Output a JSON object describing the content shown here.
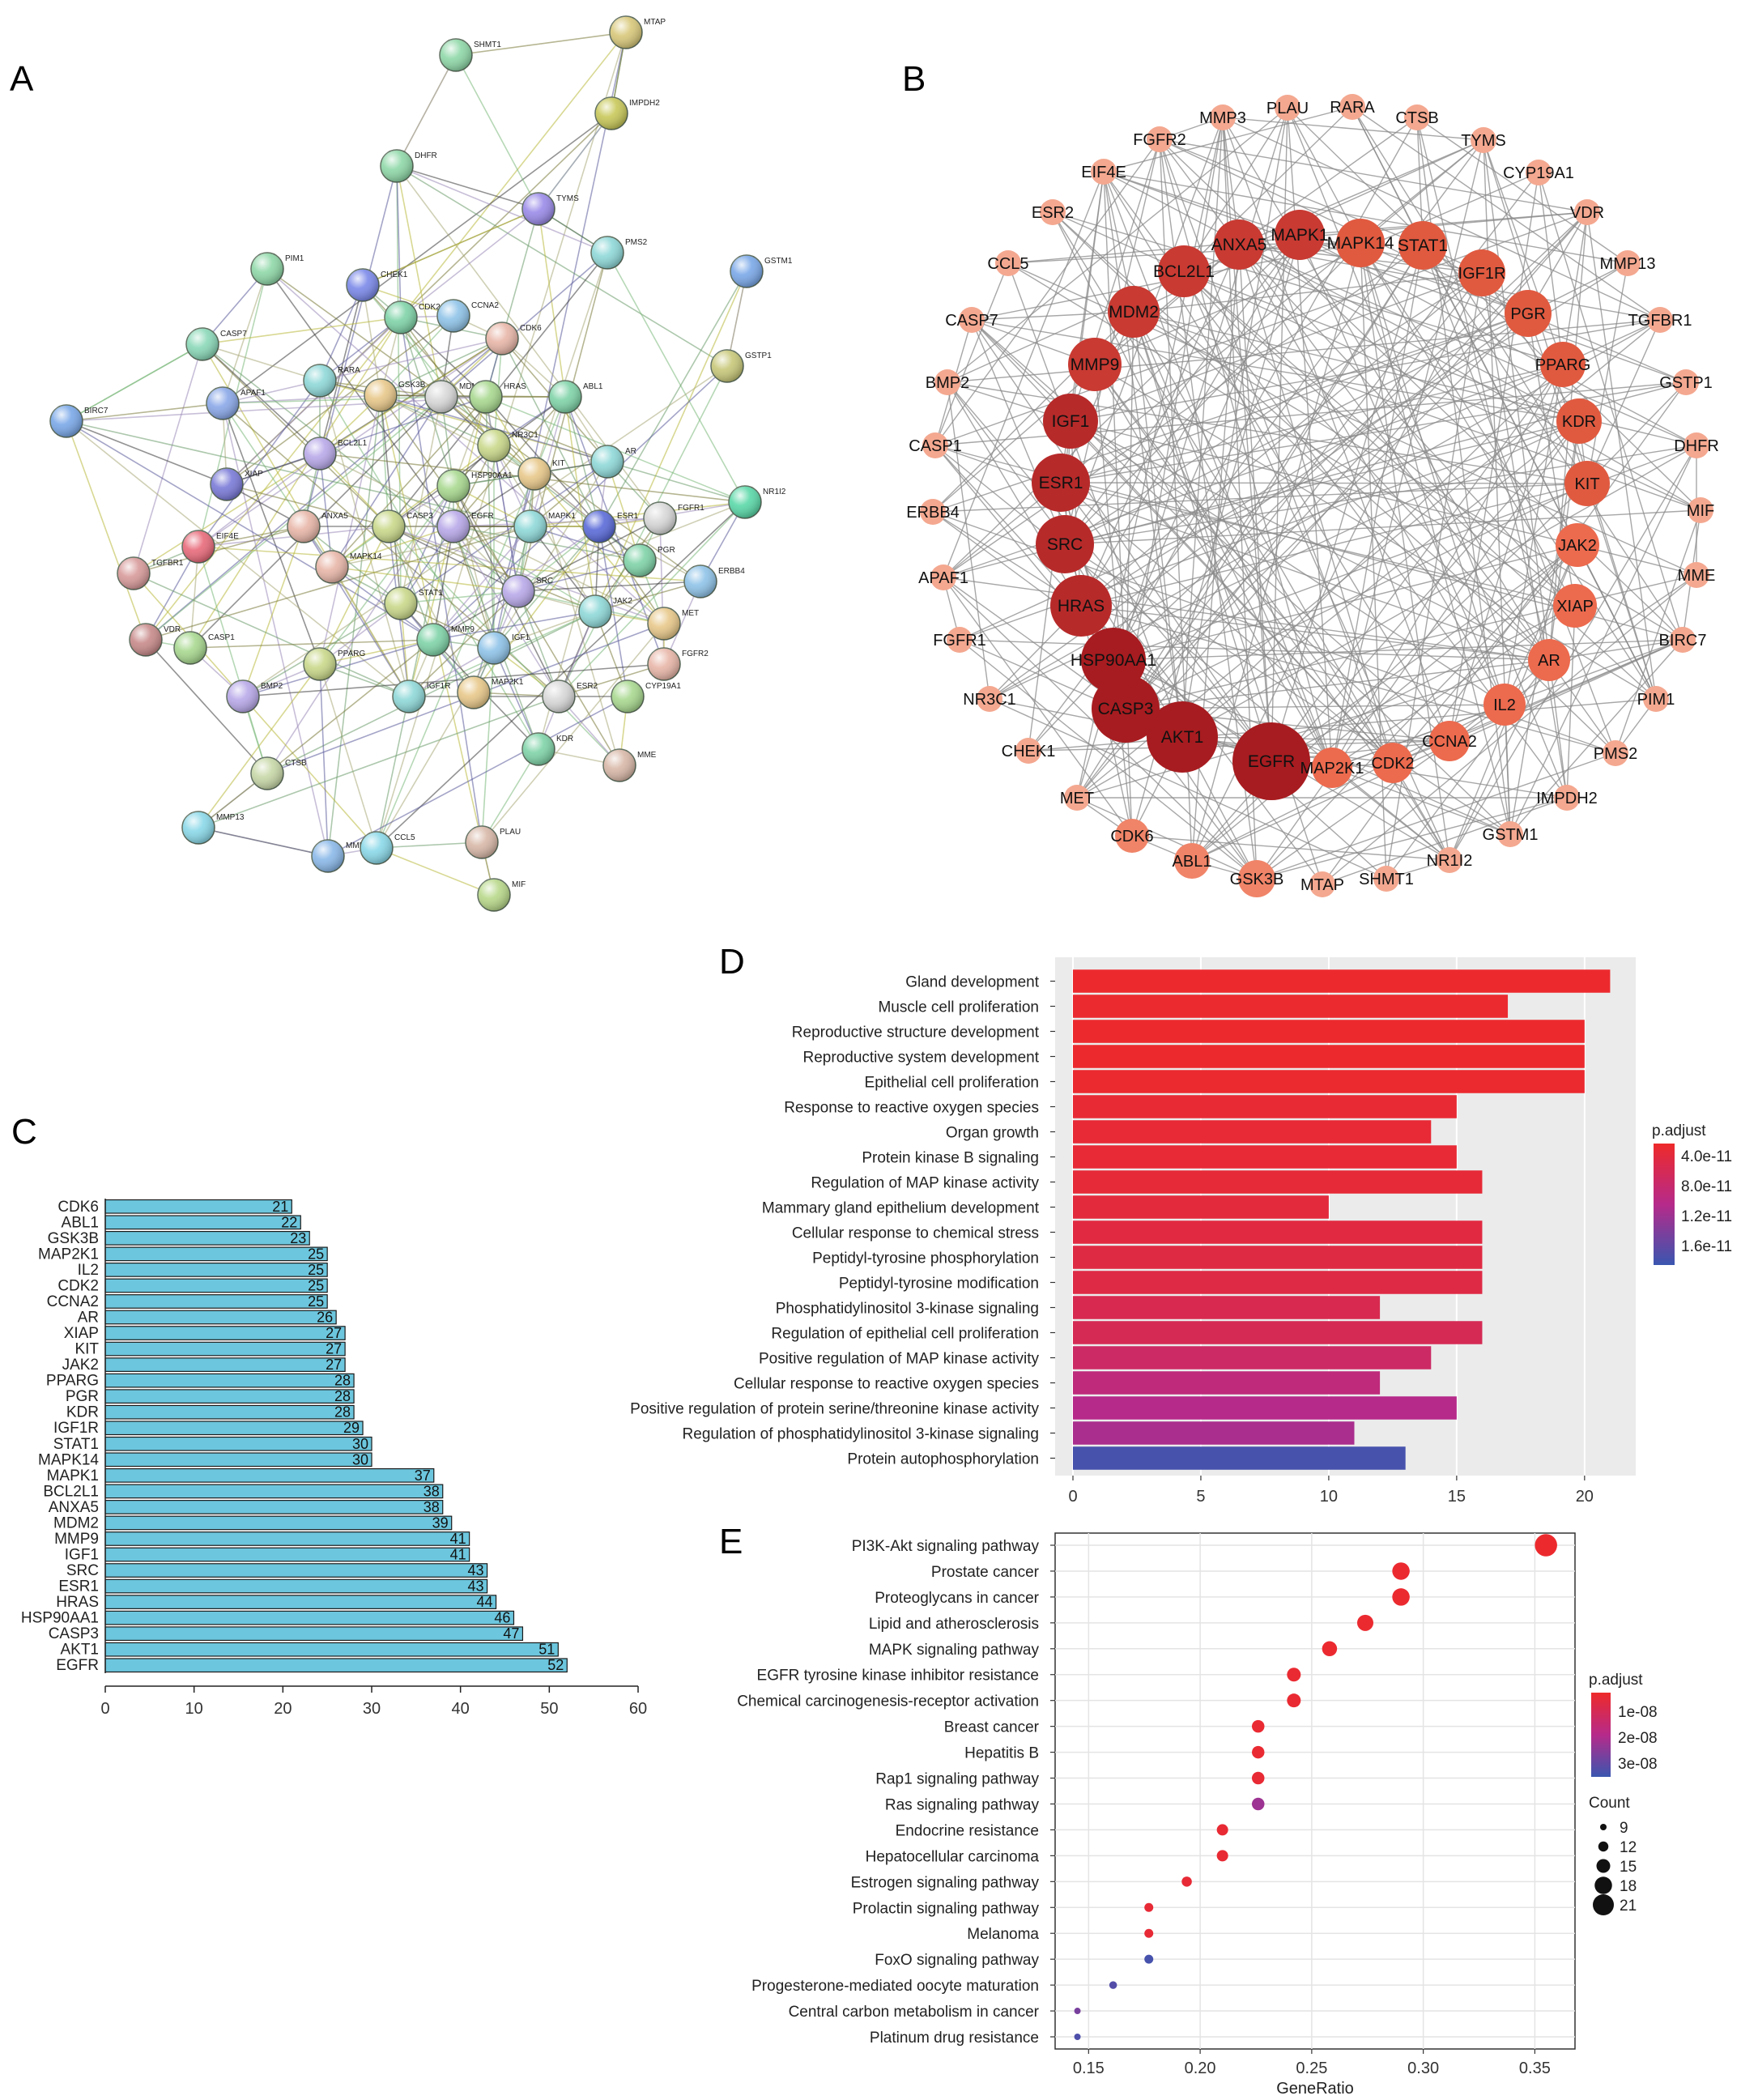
{
  "panels": {
    "a": "A",
    "b": "B",
    "c": "C",
    "d": "D",
    "e": "E"
  },
  "chart_data": [
    {
      "panel": "A",
      "type": "network",
      "nodes": [
        "SHMT1",
        "MTAP",
        "IMPDH2",
        "DHFR",
        "TYMS",
        "PMS2",
        "GSTM1",
        "PIM1",
        "CHEK1",
        "CDK2",
        "CCNA2",
        "CDK6",
        "CASP7",
        "GSTP1",
        "RARA",
        "GSK3B",
        "MDM2",
        "HRAS",
        "ABL1",
        "APAF1",
        "BIRC7",
        "NR3C1",
        "BCL2L1",
        "AR",
        "KIT",
        "XIAP",
        "HSP90AA1",
        "NR1I2",
        "EIF4E",
        "ANXA5",
        "CASP3",
        "EGFR",
        "MAPK1",
        "ESR1",
        "FGFR1",
        "TGFBR1",
        "PGR",
        "ERBB4",
        "MAPK14",
        "STAT1",
        "SRC",
        "JAK2",
        "MET",
        "VDR",
        "CASP1",
        "MMP9",
        "IGF1",
        "FGFR2",
        "PPARG",
        "BMP2",
        "IGF1R",
        "MAP2K1",
        "ESR2",
        "CYP19A1",
        "KDR",
        "MME",
        "CTSB",
        "MMP13",
        "MMP3",
        "CCL5",
        "PLAU",
        "MIF"
      ]
    },
    {
      "panel": "B",
      "type": "network",
      "nodes": [
        "EGFR",
        "AKT1",
        "CASP3",
        "HSP90AA1",
        "HRAS",
        "SRC",
        "ESR1",
        "IGF1",
        "MMP9",
        "MDM2",
        "BCL2L1",
        "ANXA5",
        "MAPK1",
        "MAPK14",
        "STAT1",
        "IGF1R",
        "PGR",
        "PPARG",
        "KDR",
        "KIT",
        "JAK2",
        "XIAP",
        "AR",
        "IL2",
        "CCNA2",
        "CDK2",
        "MAP2K1",
        "GSK3B",
        "ABL1",
        "CDK6",
        "MET",
        "CHEK1",
        "NR3C1",
        "FGFR1",
        "APAF1",
        "ERBB4",
        "CASP1",
        "BMP2",
        "CASP7",
        "CCL5",
        "ESR2",
        "EIF4E",
        "FGFR2",
        "MMP3",
        "PLAU",
        "RARA",
        "CTSB",
        "TYMS",
        "CYP19A1",
        "VDR",
        "MMP13",
        "TGFBR1",
        "GSTP1",
        "DHFR",
        "MIF",
        "MME",
        "BIRC7",
        "PIM1",
        "PMS2",
        "IMPDH2",
        "GSTM1",
        "NR1I2",
        "SHMT1",
        "MTAP"
      ]
    },
    {
      "panel": "C",
      "type": "bar",
      "orientation": "horizontal",
      "categories": [
        "CDK6",
        "ABL1",
        "GSK3B",
        "MAP2K1",
        "IL2",
        "CDK2",
        "CCNA2",
        "AR",
        "XIAP",
        "KIT",
        "JAK2",
        "PPARG",
        "PGR",
        "KDR",
        "IGF1R",
        "STAT1",
        "MAPK14",
        "MAPK1",
        "BCL2L1",
        "ANXA5",
        "MDM2",
        "MMP9",
        "IGF1",
        "SRC",
        "ESR1",
        "HRAS",
        "HSP90AA1",
        "CASP3",
        "AKT1",
        "EGFR"
      ],
      "values": [
        21,
        22,
        23,
        25,
        25,
        25,
        25,
        26,
        27,
        27,
        27,
        28,
        28,
        28,
        29,
        30,
        30,
        37,
        38,
        38,
        39,
        41,
        41,
        43,
        43,
        44,
        46,
        47,
        51,
        52
      ],
      "xticks": [
        "0",
        "10",
        "20",
        "30",
        "40",
        "50",
        "60"
      ],
      "xlim": [
        0,
        60
      ],
      "color": "#6cc6dd"
    },
    {
      "panel": "D",
      "type": "bar",
      "orientation": "horizontal",
      "categories": [
        "Gland development",
        "Muscle cell proliferation",
        "Reproductive structure development",
        "Reproductive system development",
        "Epithelial cell proliferation",
        "Response to reactive oxygen species",
        "Organ growth",
        "Protein kinase B signaling",
        "Regulation of MAP kinase activity",
        "Mammary gland epithelium development",
        "Cellular response to chemical stress",
        "Peptidyl-tyrosine phosphorylation",
        "Peptidyl-tyrosine modification",
        "Phosphatidylinositol 3-kinase signaling",
        "Regulation of epithelial cell proliferation",
        "Positive regulation of MAP kinase activity",
        "Cellular response to reactive oxygen species",
        "Positive regulation of protein serine/threonine kinase activity",
        "Regulation of phosphatidylinositol 3-kinase signaling",
        "Protein autophosphorylation"
      ],
      "values": [
        21,
        17,
        20,
        20,
        20,
        15,
        14,
        15,
        16,
        10,
        16,
        16,
        16,
        12,
        16,
        14,
        12,
        15,
        11,
        13
      ],
      "p_adjust_rank": [
        0.02,
        0.03,
        0.02,
        0.02,
        0.03,
        0.05,
        0.06,
        0.06,
        0.07,
        0.1,
        0.12,
        0.13,
        0.14,
        0.2,
        0.22,
        0.3,
        0.42,
        0.5,
        0.55,
        0.95
      ],
      "xticks": [
        "0",
        "5",
        "10",
        "15",
        "20"
      ],
      "xlim": [
        0,
        22
      ],
      "legend": {
        "title": "p.adjust",
        "labels": [
          "4.0e-11",
          "8.0e-11",
          "1.2e-11",
          "1.6e-11"
        ]
      }
    },
    {
      "panel": "E",
      "type": "scatter",
      "categories": [
        "PI3K-Akt signaling pathway",
        "Prostate cancer",
        "Proteoglycans in cancer",
        "Lipid and atherosclerosis",
        "MAPK signaling pathway",
        "EGFR tyrosine kinase inhibitor resistance",
        "Chemical carcinogenesis-receptor activation",
        "Breast cancer",
        "Hepatitis B",
        "Rap1 signaling pathway",
        "Ras signaling pathway",
        "Endocrine resistance",
        "Hepatocellular carcinoma",
        "Estrogen signaling pathway",
        "Prolactin signaling pathway",
        "Melanoma",
        "FoxO signaling pathway",
        "Progesterone-mediated oocyte maturation",
        "Central carbon metabolism in cancer",
        "Platinum drug resistance"
      ],
      "gene_ratio": [
        0.355,
        0.29,
        0.29,
        0.274,
        0.258,
        0.242,
        0.242,
        0.226,
        0.226,
        0.226,
        0.226,
        0.21,
        0.21,
        0.194,
        0.177,
        0.177,
        0.177,
        0.161,
        0.145,
        0.145
      ],
      "count": [
        22,
        18,
        18,
        17,
        16,
        15,
        15,
        14,
        14,
        14,
        14,
        13,
        13,
        12,
        11,
        11,
        11,
        10,
        9,
        9
      ],
      "p_adjust_rank": [
        0.02,
        0.03,
        0.03,
        0.03,
        0.03,
        0.04,
        0.04,
        0.04,
        0.04,
        0.05,
        0.6,
        0.05,
        0.05,
        0.06,
        0.06,
        0.06,
        0.95,
        0.9,
        0.75,
        0.92
      ],
      "xlabel": "GeneRatio",
      "xticks": [
        "0.15",
        "0.20",
        "0.25",
        "0.30",
        "0.35"
      ],
      "xlim": [
        0.135,
        0.368
      ],
      "legend": {
        "color_title": "p.adjust",
        "color_labels": [
          "1e-08",
          "2e-08",
          "3e-08"
        ],
        "size_title": "Count",
        "size_labels": [
          "9",
          "12",
          "15",
          "18",
          "21"
        ]
      }
    }
  ]
}
